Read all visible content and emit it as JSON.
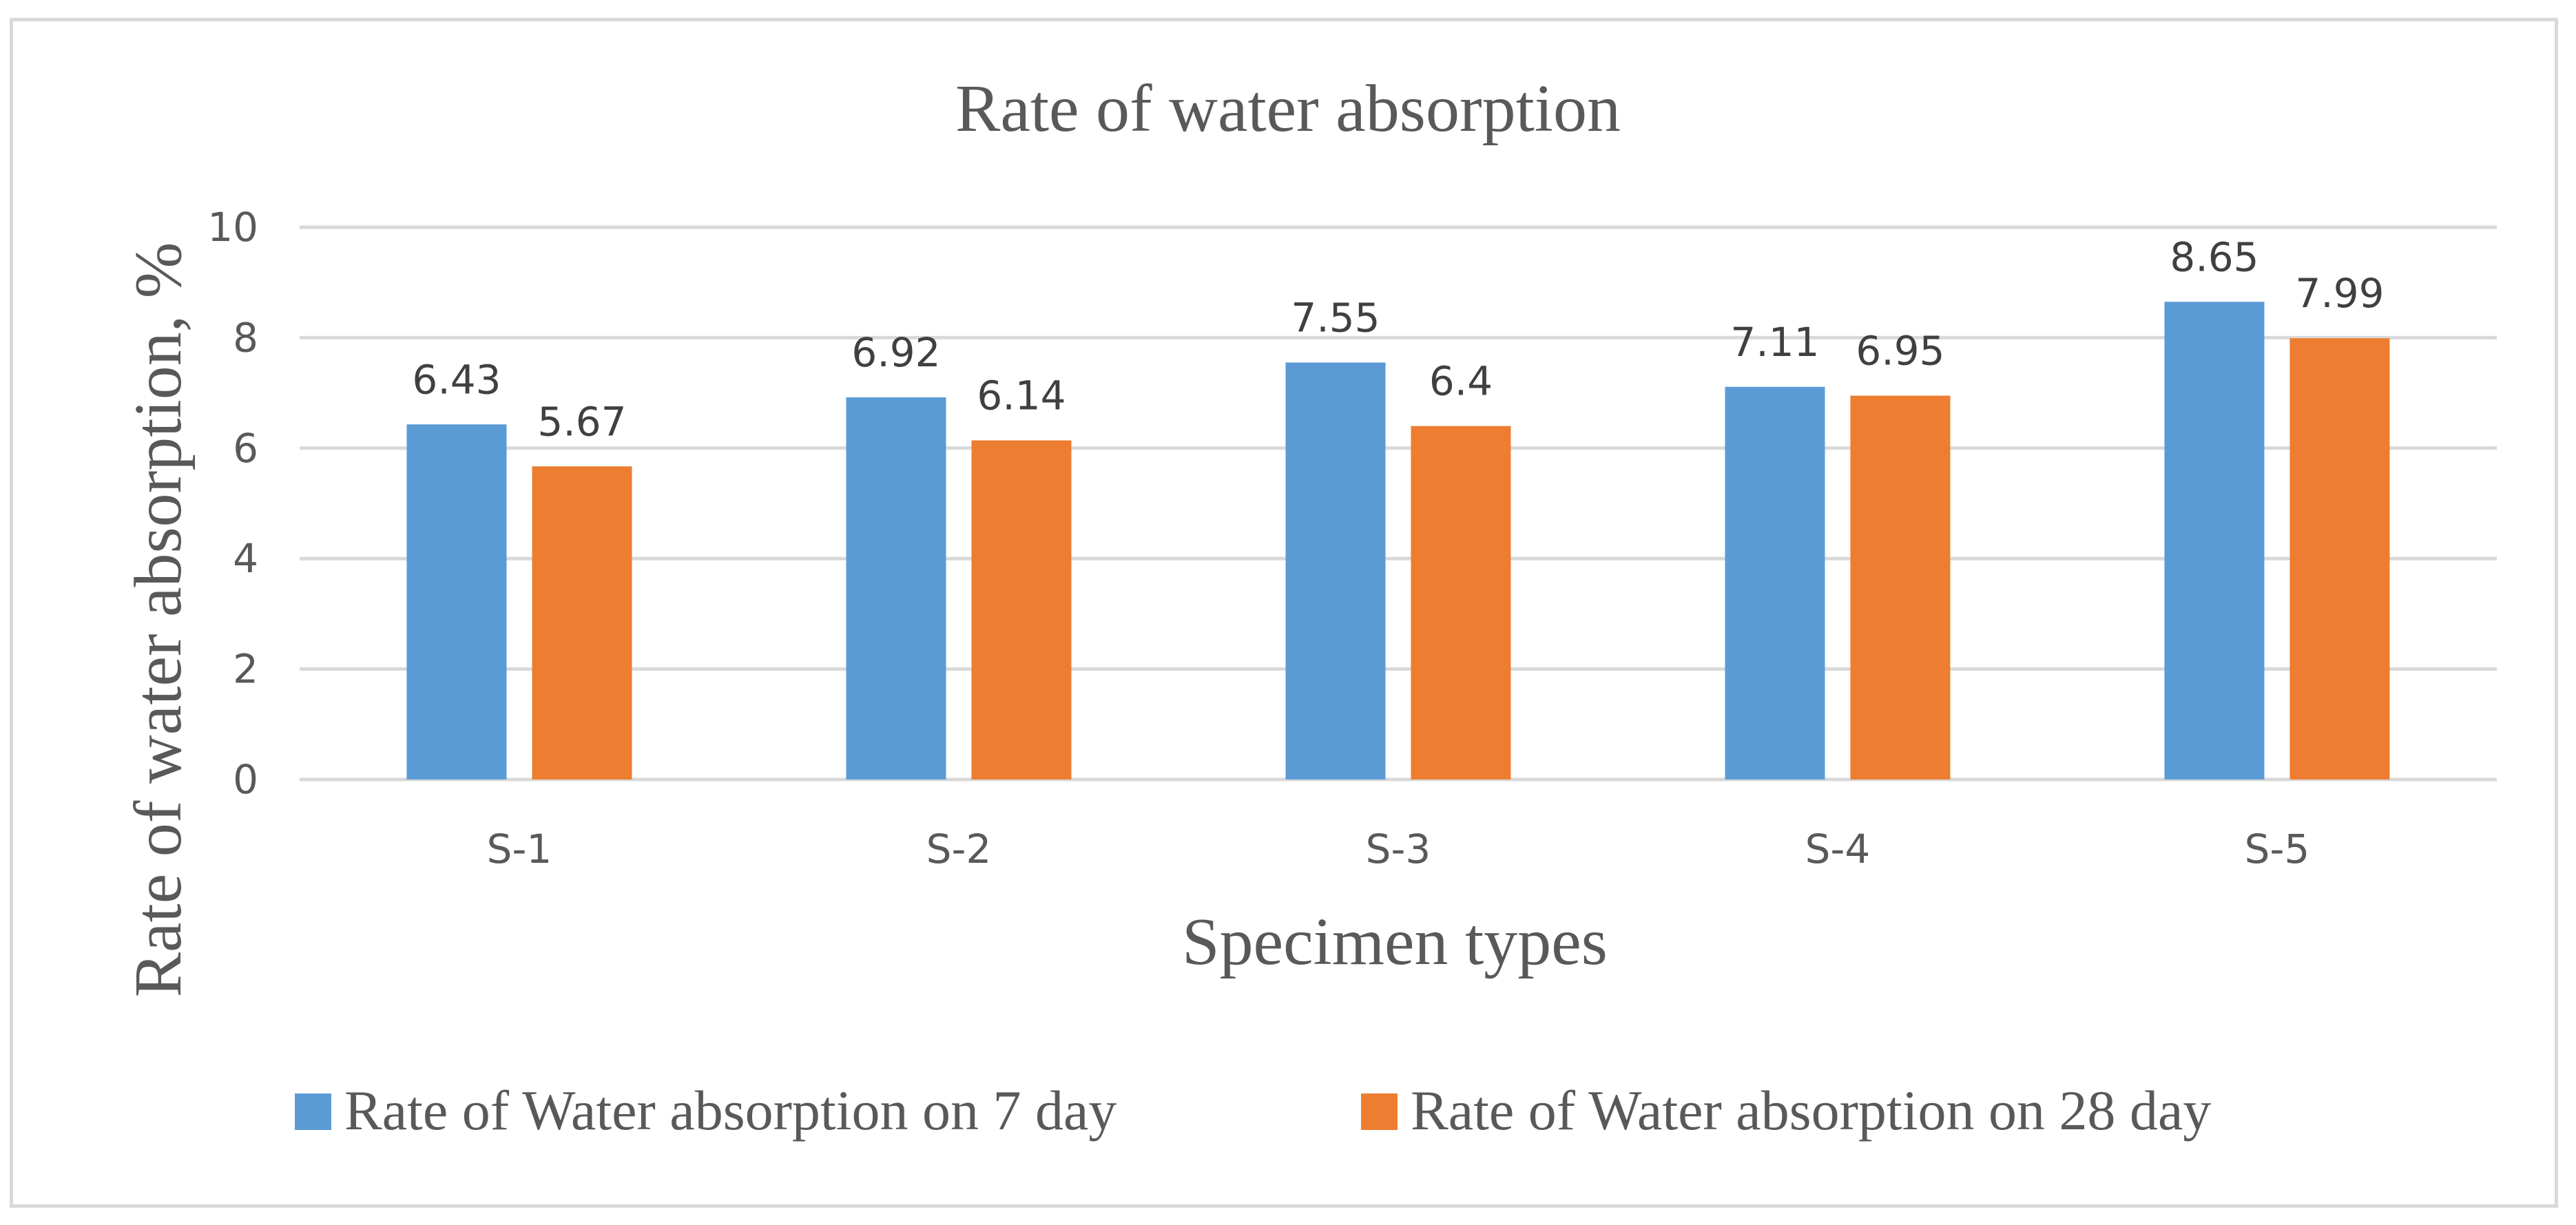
{
  "chart_data": {
    "type": "bar",
    "title": "Rate of water absorption",
    "xlabel": "Specimen types",
    "ylabel": "Rate of water absorption, %",
    "ylim": [
      0,
      10
    ],
    "yticks": [
      0,
      2,
      4,
      6,
      8,
      10
    ],
    "ytick_labels": [
      "0",
      "2",
      "4",
      "6",
      "8",
      "10"
    ],
    "grid": true,
    "legend_position": "bottom",
    "categories": [
      "S-1",
      "S-2",
      "S-3",
      "S-4",
      "S-5"
    ],
    "series": [
      {
        "name": "Rate of Water absorption on 7 day",
        "color": "#5b9bd5",
        "values": [
          6.43,
          6.92,
          7.55,
          7.11,
          8.65
        ],
        "labels": [
          "6.43",
          "6.92",
          "7.55",
          "7.11",
          "8.65"
        ]
      },
      {
        "name": "Rate of Water absorption on 28 day",
        "color": "#ed7d31",
        "values": [
          5.67,
          6.14,
          6.4,
          6.95,
          7.99
        ],
        "labels": [
          "5.67",
          "6.14",
          "6.4",
          "6.95",
          "7.99"
        ]
      }
    ]
  },
  "colors": {
    "grid": "#d9d9d9",
    "axis_text": "#595959",
    "data_label_text": "#404040",
    "title_text": "#595959"
  }
}
